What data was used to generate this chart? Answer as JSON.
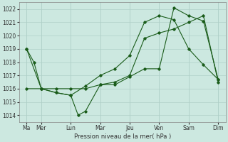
{
  "bg_color": "#cce8e0",
  "line_color": "#1a5c1a",
  "grid_color": "#b0d0c8",
  "ylabel": "Pression niveau de la mer( hPa )",
  "ylim": [
    1013.5,
    1022.5
  ],
  "yticks": [
    1014,
    1015,
    1016,
    1017,
    1018,
    1019,
    1020,
    1021,
    1022
  ],
  "x_labels": [
    "Ma",
    "Mer",
    "Lun",
    "Mar",
    "Jeu",
    "Ven",
    "Sam",
    "Dim"
  ],
  "x_positions": [
    0,
    2,
    6,
    10,
    14,
    18,
    22,
    26
  ],
  "xlim": [
    -1,
    27
  ],
  "line1_x": [
    0,
    1,
    2,
    4,
    6,
    7,
    8,
    10,
    12,
    14,
    16,
    18,
    20,
    22,
    24,
    26
  ],
  "line1_y": [
    1019,
    1018,
    1016,
    1015.7,
    1015.5,
    1014.0,
    1014.3,
    1016.3,
    1016.3,
    1016.9,
    1017.5,
    1017.5,
    1022.1,
    1021.5,
    1021.1,
    1016.7
  ],
  "line2_x": [
    0,
    2,
    4,
    6,
    8,
    10,
    12,
    14,
    16,
    18,
    20,
    22,
    24,
    26
  ],
  "line2_y": [
    1016,
    1016,
    1016,
    1016,
    1016,
    1016.3,
    1016.5,
    1017,
    1019.8,
    1020.2,
    1020.5,
    1021,
    1021.5,
    1016.5
  ],
  "line3_x": [
    0,
    2,
    4,
    6,
    8,
    10,
    12,
    14,
    16,
    18,
    20,
    22,
    24,
    26
  ],
  "line3_y": [
    1019,
    1016,
    1015.7,
    1015.5,
    1016.2,
    1017,
    1017.5,
    1018.5,
    1021.0,
    1021.5,
    1021.2,
    1019.0,
    1017.8,
    1016.7
  ]
}
